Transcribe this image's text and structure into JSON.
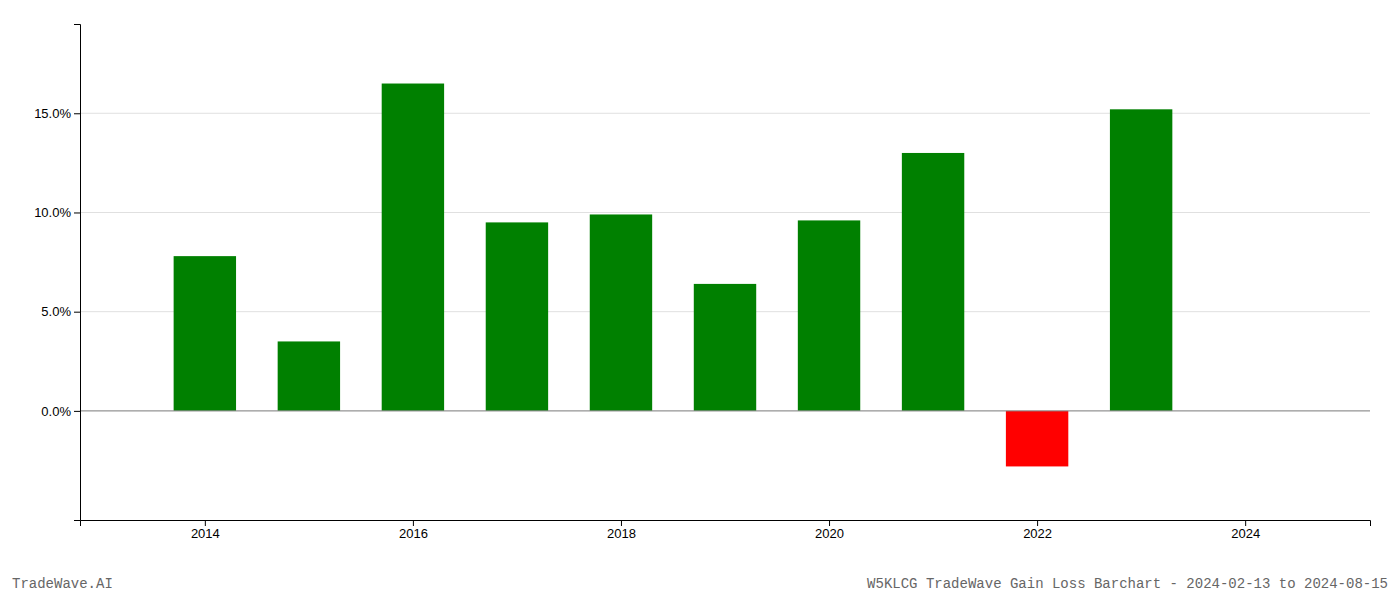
{
  "chart_data": {
    "type": "bar",
    "x": [
      2014,
      2015,
      2016,
      2017,
      2018,
      2019,
      2020,
      2021,
      2022,
      2023
    ],
    "values": [
      0.078,
      0.035,
      0.165,
      0.095,
      0.099,
      0.064,
      0.096,
      0.13,
      -0.028,
      0.152
    ],
    "colors": [
      "#008000",
      "#008000",
      "#008000",
      "#008000",
      "#008000",
      "#008000",
      "#008000",
      "#008000",
      "#ff0000",
      "#008000"
    ],
    "xlim": [
      2012.8,
      2025.2
    ],
    "xticks": [
      2014,
      2016,
      2018,
      2020,
      2022,
      2024
    ],
    "ylim": [
      -0.055,
      0.195
    ],
    "yticks": [
      {
        "value": 0.0,
        "label": "0.0%"
      },
      {
        "value": 0.05,
        "label": "5.0%"
      },
      {
        "value": 0.1,
        "label": "10.0%"
      },
      {
        "value": 0.15,
        "label": "15.0%"
      }
    ],
    "grid": true,
    "annotations": [
      "TradeWave.AI",
      "W5KLCG TradeWave Gain Loss Barchart - 2024-02-13 to 2024-08-15"
    ]
  }
}
